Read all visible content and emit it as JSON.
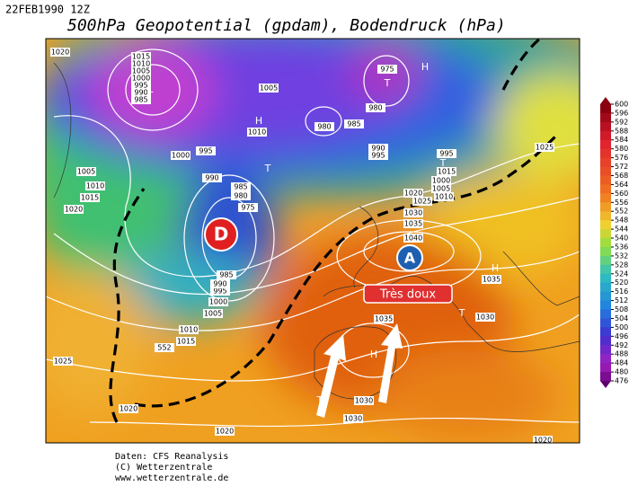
{
  "header": {
    "date": "22FEB1990 12Z",
    "title": "500hPa Geopotential (gpdam), Bodendruck (hPa)"
  },
  "annotations": {
    "low": "D",
    "high": "A",
    "warm_label": "Très doux"
  },
  "isobar_labels": [
    "1020",
    "1015",
    "1010",
    "1005",
    "1000",
    "995",
    "990",
    "985",
    "1005",
    "1010",
    "1015",
    "1020",
    "1000",
    "995",
    "990",
    "985",
    "980",
    "975",
    "1010",
    "1005",
    "980",
    "985",
    "975",
    "980",
    "990",
    "995",
    "1020",
    "1025",
    "1030",
    "1035",
    "1040",
    "995",
    "1000",
    "1005",
    "1010",
    "1015",
    "1025",
    "1035",
    "1030",
    "1035",
    "1030",
    "1030",
    "1025",
    "1020",
    "1015",
    "1010",
    "1005",
    "1000",
    "995",
    "990",
    "985",
    "1020",
    "1020",
    "552"
  ],
  "pressure_centers": [
    "T",
    "H",
    "T",
    "H",
    "T",
    "T",
    "H",
    "H",
    "T",
    "T"
  ],
  "colorbar": {
    "ticks": [
      600,
      596,
      592,
      588,
      584,
      580,
      576,
      572,
      568,
      564,
      560,
      556,
      552,
      548,
      544,
      540,
      536,
      532,
      528,
      524,
      520,
      516,
      512,
      508,
      504,
      500,
      496,
      492,
      488,
      484,
      480,
      476
    ]
  },
  "footer": {
    "source": "Daten: CFS Reanalysis",
    "copyright": "(C) Wetterzentrale",
    "url": "www.wetterzentrale.de"
  }
}
